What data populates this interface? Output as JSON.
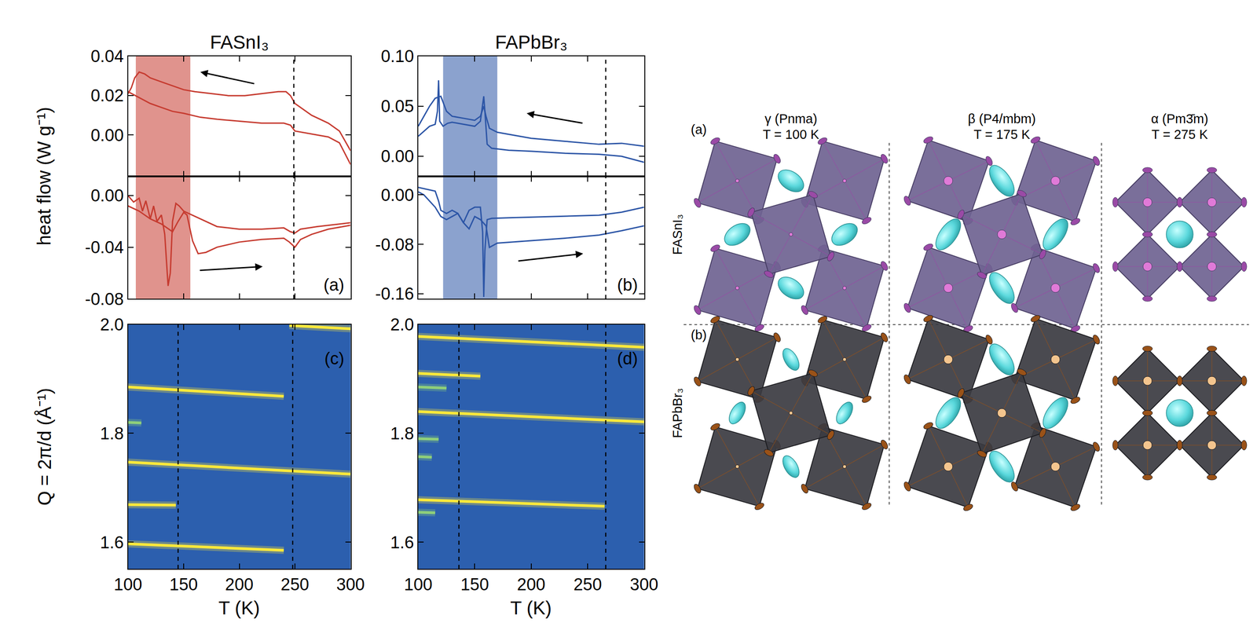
{
  "chart_data": [
    {
      "type": "line",
      "title": "FASnI₃",
      "ylabel": "heat flow (W g⁻¹)",
      "color": "#c63b30",
      "xlim": [
        100,
        300
      ],
      "xticks": [
        100,
        150,
        200,
        250,
        300
      ],
      "ylim": [
        -0.021,
        0.04
      ],
      "yticks": [
        {
          "value": 0,
          "label": "0.00"
        },
        0.02,
        0.04
      ],
      "tick_labels": "y",
      "band": [
        107,
        156
      ],
      "vlines": [
        249
      ],
      "arrows": [
        {
          "from": [
            214,
            0.026
          ],
          "to": [
            165,
            0.032
          ]
        }
      ],
      "series": [
        {
          "color": "#c63b30",
          "line_style": "solid",
          "x": [
            100,
            103,
            106,
            110,
            115,
            120,
            130,
            140,
            150,
            160,
            175,
            190,
            205,
            220,
            235,
            242,
            246,
            250,
            255,
            265,
            280,
            290,
            300
          ],
          "values": [
            0.021,
            0.024,
            0.029,
            0.032,
            0.031,
            0.029,
            0.027,
            0.025,
            0.023,
            0.022,
            0.021,
            0.02,
            0.02,
            0.021,
            0.022,
            0.022,
            0.02,
            0.016,
            0.014,
            0.01,
            0.006,
            0.002,
            -0.008
          ]
        },
        {
          "color": "#c63b30",
          "line_style": "solid",
          "x": [
            100,
            110,
            120,
            130,
            140,
            150,
            165,
            180,
            200,
            220,
            240,
            246,
            250,
            260,
            280,
            290,
            300
          ],
          "values": [
            0.022,
            0.019,
            0.016,
            0.014,
            0.012,
            0.011,
            0.009,
            0.008,
            0.007,
            0.006,
            0.006,
            0.005,
            0.002,
            0.001,
            -0.001,
            -0.004,
            -0.015
          ]
        }
      ]
    },
    {
      "type": "line",
      "color": "#c63b30",
      "xlim": [
        100,
        300
      ],
      "xticks": [
        100,
        150,
        200,
        250,
        300
      ],
      "ylim": [
        -0.08,
        0.015
      ],
      "yticks": [
        -0.08,
        -0.04,
        {
          "value": 0,
          "label": "0.00"
        }
      ],
      "tick_labels": "y",
      "band": [
        107,
        156
      ],
      "vlines": [
        249
      ],
      "arrows": [
        {
          "from": [
            164,
            -0.058
          ],
          "to": [
            221,
            -0.055
          ]
        }
      ],
      "panel_label": "(a)",
      "series": [
        {
          "color": "#c63b30",
          "line_style": "solid",
          "x": [
            100,
            105,
            110,
            113,
            116,
            120,
            123,
            126,
            130,
            133,
            136,
            138,
            140,
            143,
            146,
            150,
            160,
            170,
            180,
            200,
            220,
            240,
            246,
            250,
            255,
            270,
            300
          ],
          "values": [
            0.0,
            -0.005,
            -0.002,
            -0.012,
            -0.004,
            -0.018,
            -0.008,
            -0.02,
            -0.015,
            -0.03,
            -0.07,
            -0.06,
            -0.02,
            -0.006,
            -0.008,
            -0.012,
            -0.016,
            -0.02,
            -0.024,
            -0.026,
            -0.026,
            -0.025,
            -0.028,
            -0.029,
            -0.026,
            -0.024,
            -0.021
          ]
        },
        {
          "color": "#c63b30",
          "line_style": "solid",
          "x": [
            100,
            110,
            120,
            130,
            140,
            145,
            150,
            153,
            158,
            163,
            170,
            180,
            190,
            200,
            220,
            240,
            245,
            250,
            255,
            265,
            280,
            300
          ],
          "values": [
            -0.008,
            -0.012,
            -0.018,
            -0.022,
            -0.028,
            -0.02,
            -0.013,
            -0.015,
            -0.035,
            -0.045,
            -0.044,
            -0.04,
            -0.038,
            -0.036,
            -0.034,
            -0.033,
            -0.036,
            -0.04,
            -0.034,
            -0.03,
            -0.026,
            -0.023
          ]
        }
      ]
    },
    {
      "type": "line",
      "title": "FAPbBr₃",
      "color": "#2c55a6",
      "xlim": [
        100,
        300
      ],
      "xticks": [
        100,
        150,
        200,
        250,
        300
      ],
      "ylim": [
        -0.02,
        0.1
      ],
      "yticks": [
        {
          "value": 0,
          "label": "0.00"
        },
        0.05,
        {
          "value": 0.1,
          "label": "0.10"
        }
      ],
      "tick_labels": "y",
      "band": [
        122,
        170
      ],
      "vlines": [
        266
      ],
      "arrows": [
        {
          "from": [
            246,
            0.033
          ],
          "to": [
            196,
            0.043
          ]
        }
      ],
      "series": [
        {
          "color": "#2c55a6",
          "line_style": "solid",
          "x": [
            100,
            105,
            110,
            115,
            120,
            125,
            130,
            140,
            150,
            155,
            158,
            160,
            163,
            170,
            180,
            200,
            230,
            260,
            280,
            300
          ],
          "values": [
            0.03,
            0.04,
            0.05,
            0.058,
            0.06,
            0.045,
            0.04,
            0.038,
            0.036,
            0.04,
            0.05,
            0.04,
            0.028,
            0.024,
            0.022,
            0.018,
            0.015,
            0.012,
            0.013,
            0.01
          ]
        },
        {
          "color": "#2c55a6",
          "line_style": "solid",
          "x": [
            100,
            105,
            110,
            115,
            117,
            118,
            119,
            122,
            126,
            130,
            140,
            150,
            155,
            158,
            159,
            161,
            165,
            180,
            200,
            230,
            260,
            280,
            300
          ],
          "values": [
            0.02,
            0.025,
            0.03,
            0.032,
            0.045,
            0.076,
            0.035,
            0.03,
            0.033,
            0.034,
            0.032,
            0.03,
            0.035,
            0.06,
            0.045,
            0.012,
            0.008,
            0.006,
            0.005,
            0.003,
            0.002,
            0.0,
            -0.006
          ]
        }
      ]
    },
    {
      "type": "line",
      "color": "#2c55a6",
      "xlim": [
        100,
        300
      ],
      "xticks": [
        100,
        150,
        200,
        250,
        300
      ],
      "ylim": [
        -0.168,
        0.03
      ],
      "yticks": [
        -0.16,
        -0.08,
        {
          "value": 0,
          "label": "0.00"
        }
      ],
      "tick_labels": "y",
      "band": [
        122,
        170
      ],
      "vlines": [
        266
      ],
      "arrows": [
        {
          "from": [
            188,
            -0.107
          ],
          "to": [
            246,
            -0.095
          ]
        }
      ],
      "panel_label": "(b)",
      "series": [
        {
          "color": "#2c55a6",
          "line_style": "solid",
          "x": [
            100,
            105,
            110,
            115,
            118,
            120,
            125,
            130,
            135,
            140,
            145,
            150,
            155,
            157,
            158,
            159,
            161,
            165,
            180,
            200,
            230,
            260,
            280,
            300
          ],
          "values": [
            0.012,
            0.01,
            0.008,
            0.006,
            -0.01,
            -0.025,
            -0.03,
            -0.025,
            -0.03,
            -0.045,
            -0.025,
            -0.02,
            -0.02,
            -0.06,
            -0.165,
            -0.09,
            -0.04,
            -0.038,
            -0.037,
            -0.036,
            -0.035,
            -0.033,
            -0.028,
            -0.02
          ]
        },
        {
          "color": "#2c55a6",
          "line_style": "solid",
          "x": [
            100,
            105,
            110,
            115,
            120,
            125,
            130,
            135,
            140,
            145,
            150,
            155,
            160,
            163,
            170,
            200,
            230,
            260,
            280,
            300
          ],
          "values": [
            0.005,
            0.0,
            -0.01,
            -0.02,
            -0.035,
            -0.04,
            -0.035,
            -0.03,
            -0.045,
            -0.055,
            -0.035,
            -0.04,
            -0.05,
            -0.085,
            -0.078,
            -0.074,
            -0.07,
            -0.065,
            -0.058,
            -0.05
          ]
        }
      ]
    },
    {
      "type": "map",
      "xlabel": "T (K)",
      "ylabel": "Q = 2π/d (Å⁻¹)",
      "xlim": [
        100,
        300
      ],
      "xticks": [
        100,
        150,
        200,
        250,
        300
      ],
      "ylim": [
        1.551,
        2.0
      ],
      "yticks": [
        1.6,
        1.8,
        {
          "value": 2,
          "label": "2.0"
        }
      ],
      "vlines": [
        145,
        248
      ],
      "panel_label": "(c)",
      "series": [
        {
          "color": "#ffe93a",
          "x": [
            245,
            300
          ],
          "values": [
            1.998,
            1.992
          ]
        },
        {
          "color": "#ffe93a",
          "x": [
            100,
            240
          ],
          "values": [
            1.885,
            1.868
          ]
        },
        {
          "color": "#8fcf7a",
          "x": [
            100,
            112
          ],
          "values": [
            1.82,
            1.819
          ]
        },
        {
          "color": "#ffe93a",
          "x": [
            100,
            300
          ],
          "values": [
            1.747,
            1.725
          ]
        },
        {
          "color": "#ffe93a",
          "x": [
            100,
            143
          ],
          "values": [
            1.669,
            1.668
          ]
        },
        {
          "color": "#ffe93a",
          "x": [
            100,
            240
          ],
          "values": [
            1.597,
            1.585
          ]
        }
      ]
    },
    {
      "type": "map",
      "xlabel": "T (K)",
      "xlim": [
        100,
        300
      ],
      "xticks": [
        100,
        150,
        200,
        250,
        300
      ],
      "ylim": [
        1.551,
        2.0
      ],
      "yticks": [
        1.6,
        1.8,
        {
          "value": 2,
          "label": "2.0"
        }
      ],
      "vlines": [
        136,
        266
      ],
      "panel_label": "(d)",
      "series": [
        {
          "color": "#ffe93a",
          "x": [
            100,
            300
          ],
          "values": [
            1.978,
            1.958
          ]
        },
        {
          "color": "#ffe93a",
          "x": [
            100,
            155
          ],
          "values": [
            1.91,
            1.905
          ]
        },
        {
          "color": "#8fcf7a",
          "x": [
            100,
            125
          ],
          "values": [
            1.885,
            1.883
          ]
        },
        {
          "color": "#ffe93a",
          "x": [
            100,
            300
          ],
          "values": [
            1.84,
            1.821
          ]
        },
        {
          "color": "#8fcf7a",
          "x": [
            100,
            118
          ],
          "values": [
            1.79,
            1.789
          ]
        },
        {
          "color": "#8fcf7a",
          "x": [
            100,
            112
          ],
          "values": [
            1.757,
            1.756
          ]
        },
        {
          "color": "#ffe93a",
          "x": [
            100,
            265
          ],
          "values": [
            1.678,
            1.666
          ]
        },
        {
          "color": "#8fcf7a",
          "x": [
            100,
            115
          ],
          "values": [
            1.655,
            1.654
          ]
        }
      ]
    }
  ],
  "diagram": {
    "columns": [
      {
        "title": "γ (Pnma)",
        "temperature": "T = 100 K"
      },
      {
        "title": "β (P4/mbm)",
        "temperature": "T = 175 K"
      },
      {
        "title": "α (Pm3̄m)",
        "temperature": "T = 275 K"
      }
    ],
    "rows": [
      {
        "letter": "(a)",
        "label": "FASnI₃"
      },
      {
        "letter": "(b)",
        "label": "FAPbBr₃"
      }
    ]
  }
}
